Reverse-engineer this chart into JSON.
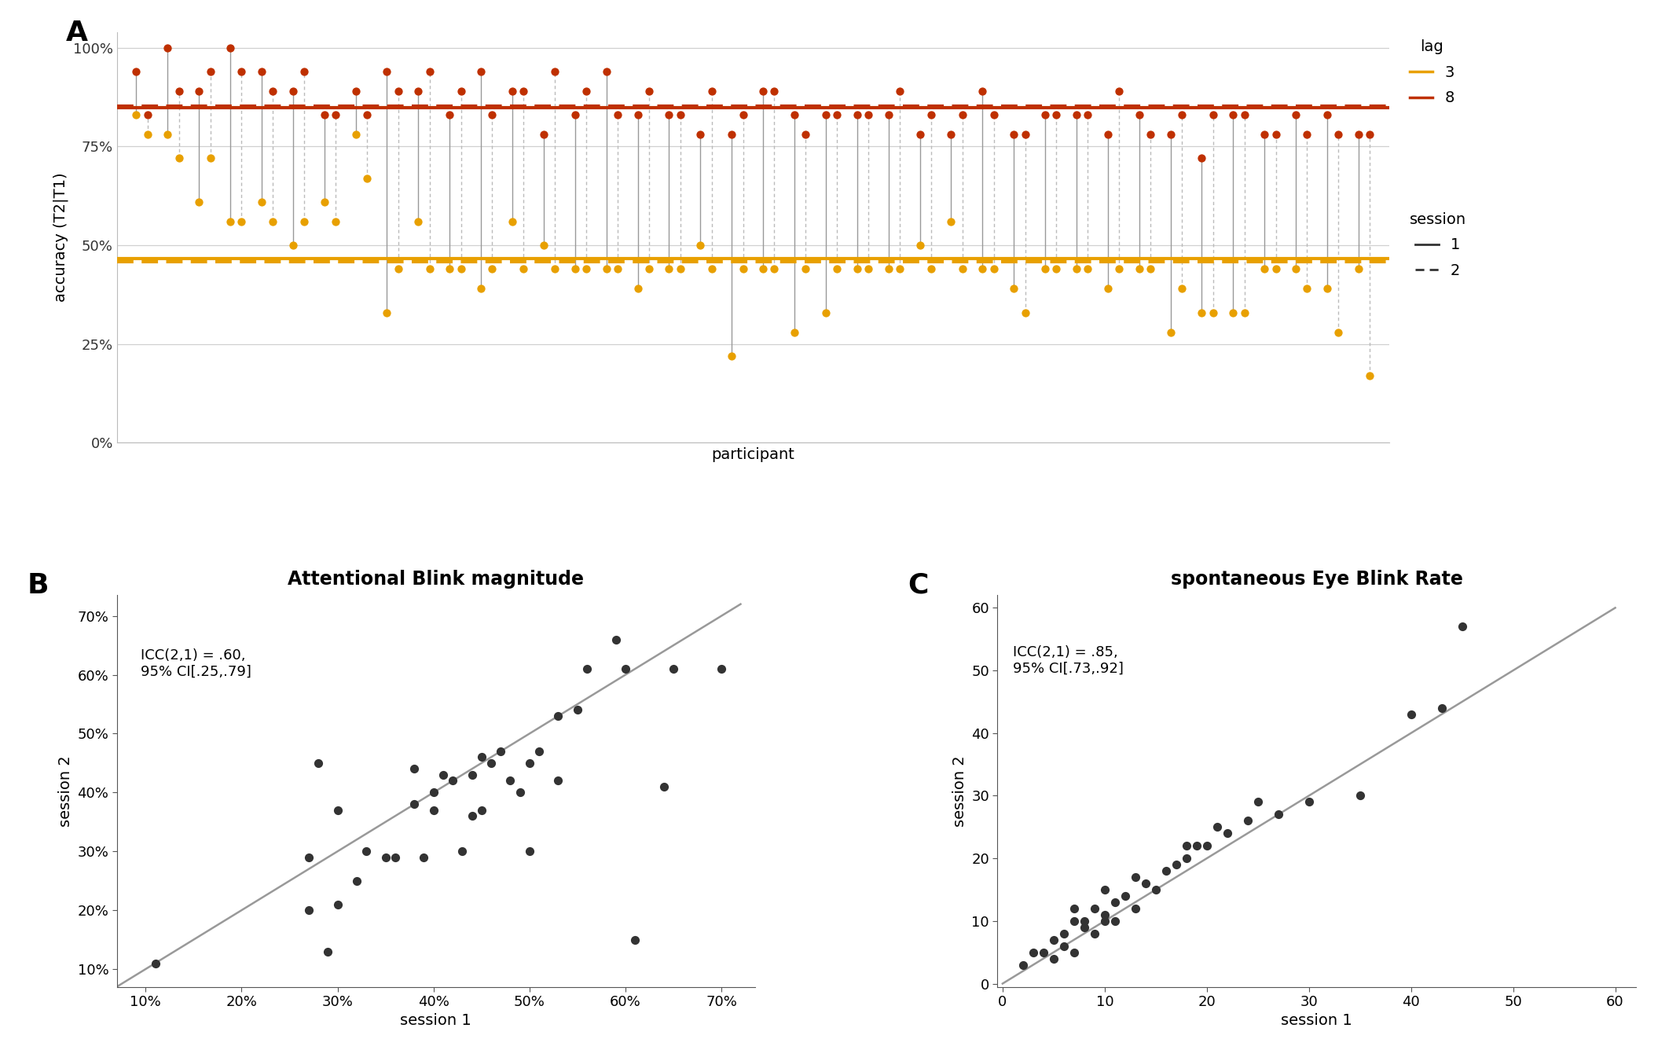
{
  "panel_A": {
    "n_participants": 40,
    "lag3_s1": [
      0.83,
      0.78,
      0.61,
      0.56,
      0.61,
      0.5,
      0.61,
      0.78,
      0.33,
      0.56,
      0.44,
      0.39,
      0.56,
      0.5,
      0.44,
      0.44,
      0.39,
      0.44,
      0.5,
      0.22,
      0.44,
      0.28,
      0.33,
      0.44,
      0.44,
      0.5,
      0.56,
      0.44,
      0.39,
      0.44,
      0.44,
      0.39,
      0.44,
      0.28,
      0.33,
      0.33,
      0.44,
      0.44,
      0.39,
      0.44
    ],
    "lag3_s2": [
      0.78,
      0.72,
      0.72,
      0.56,
      0.56,
      0.56,
      0.56,
      0.67,
      0.44,
      0.44,
      0.44,
      0.44,
      0.44,
      0.44,
      0.44,
      0.44,
      0.44,
      0.44,
      0.44,
      0.44,
      0.44,
      0.44,
      0.44,
      0.44,
      0.44,
      0.44,
      0.44,
      0.44,
      0.33,
      0.44,
      0.44,
      0.44,
      0.44,
      0.39,
      0.33,
      0.33,
      0.44,
      0.39,
      0.28,
      0.17
    ],
    "lag8_s1": [
      0.94,
      1.0,
      0.89,
      1.0,
      0.94,
      0.89,
      0.83,
      0.89,
      0.94,
      0.89,
      0.83,
      0.94,
      0.89,
      0.78,
      0.83,
      0.94,
      0.83,
      0.83,
      0.78,
      0.78,
      0.89,
      0.83,
      0.83,
      0.83,
      0.83,
      0.78,
      0.78,
      0.89,
      0.78,
      0.83,
      0.83,
      0.78,
      0.83,
      0.78,
      0.72,
      0.83,
      0.78,
      0.83,
      0.83,
      0.78
    ],
    "lag8_s2": [
      0.83,
      0.89,
      0.94,
      0.94,
      0.89,
      0.94,
      0.83,
      0.83,
      0.89,
      0.94,
      0.89,
      0.83,
      0.89,
      0.94,
      0.89,
      0.83,
      0.89,
      0.83,
      0.89,
      0.83,
      0.89,
      0.78,
      0.83,
      0.83,
      0.89,
      0.83,
      0.83,
      0.83,
      0.78,
      0.83,
      0.83,
      0.89,
      0.78,
      0.83,
      0.83,
      0.83,
      0.78,
      0.78,
      0.78,
      0.78
    ],
    "color_lag3": "#E8A000",
    "color_lag8": "#BF3000",
    "color_line_solid": "#999999",
    "color_line_dash": "#bbbbbb"
  },
  "panel_B": {
    "session1": [
      0.11,
      0.27,
      0.27,
      0.28,
      0.29,
      0.3,
      0.3,
      0.32,
      0.33,
      0.35,
      0.36,
      0.38,
      0.38,
      0.39,
      0.4,
      0.4,
      0.41,
      0.42,
      0.43,
      0.44,
      0.44,
      0.45,
      0.45,
      0.46,
      0.47,
      0.48,
      0.49,
      0.5,
      0.5,
      0.51,
      0.53,
      0.53,
      0.55,
      0.56,
      0.59,
      0.6,
      0.61,
      0.64,
      0.65,
      0.7
    ],
    "session2": [
      0.11,
      0.2,
      0.29,
      0.45,
      0.13,
      0.21,
      0.37,
      0.25,
      0.3,
      0.29,
      0.29,
      0.38,
      0.44,
      0.29,
      0.37,
      0.4,
      0.43,
      0.42,
      0.3,
      0.36,
      0.43,
      0.37,
      0.46,
      0.45,
      0.47,
      0.42,
      0.4,
      0.45,
      0.3,
      0.47,
      0.53,
      0.42,
      0.54,
      0.61,
      0.66,
      0.61,
      0.15,
      0.41,
      0.61,
      0.61
    ],
    "icc_text": "ICC(2,1) = .60,\n95% CI[.25,.79]",
    "dot_color": "#333333",
    "line_color": "#999999",
    "title": "Attentional Blink magnitude",
    "xlabel": "session 1",
    "ylabel": "session 2"
  },
  "panel_C": {
    "session1": [
      2,
      3,
      4,
      5,
      5,
      6,
      6,
      7,
      7,
      7,
      8,
      8,
      9,
      9,
      10,
      10,
      10,
      11,
      11,
      12,
      13,
      13,
      14,
      15,
      16,
      17,
      18,
      18,
      19,
      20,
      21,
      22,
      24,
      25,
      27,
      30,
      35,
      40,
      43,
      45
    ],
    "session2": [
      3,
      5,
      5,
      4,
      7,
      6,
      8,
      5,
      10,
      12,
      9,
      10,
      8,
      12,
      10,
      11,
      15,
      10,
      13,
      14,
      12,
      17,
      16,
      15,
      18,
      19,
      20,
      22,
      22,
      22,
      25,
      24,
      26,
      29,
      27,
      29,
      30,
      43,
      44,
      57
    ],
    "icc_text": "ICC(2,1) = .85,\n95% CI[.73,.92]",
    "dot_color": "#333333",
    "line_color": "#999999",
    "title": "spontaneous Eye Blink Rate",
    "xlabel": "session 1",
    "ylabel": "session 2"
  },
  "background_color": "#ffffff",
  "tick_fontsize": 13,
  "title_fontsize": 17,
  "label_fontsize": 14,
  "panel_label_fontsize": 26
}
